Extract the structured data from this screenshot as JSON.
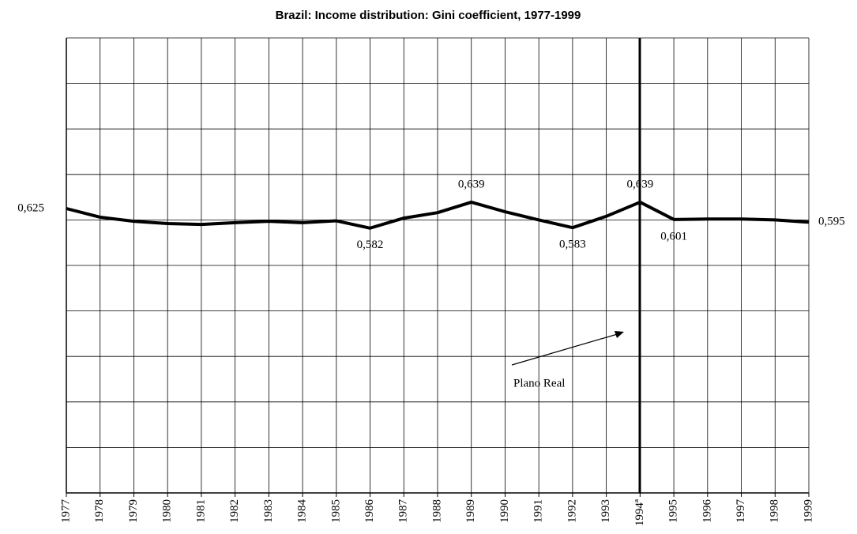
{
  "chart_data": {
    "type": "line",
    "title": "Brazil: Income distribution: Gini coefficient, 1977-1999",
    "categories": [
      "1977",
      "1978",
      "1979",
      "1980",
      "1981",
      "1982",
      "1983",
      "1984",
      "1985",
      "1986",
      "1987",
      "1988",
      "1989",
      "1990",
      "1991",
      "1992",
      "1993",
      "1994ª",
      "1995",
      "1996",
      "1997",
      "1998",
      "1999"
    ],
    "series": [
      {
        "name": "Gini coefficient",
        "color": "#000000",
        "values": [
          0.625,
          0.606,
          0.597,
          0.592,
          0.59,
          0.594,
          0.597,
          0.594,
          0.598,
          0.582,
          0.604,
          0.616,
          0.639,
          0.618,
          0.6,
          0.583,
          0.608,
          0.639,
          0.601,
          0.602,
          0.602,
          0.6,
          0.595
        ],
        "value_labels": [
          "0,625",
          null,
          null,
          null,
          null,
          null,
          null,
          null,
          null,
          "0,582",
          null,
          null,
          "0,639",
          null,
          null,
          "0,583",
          null,
          "0,639",
          "0,601",
          null,
          null,
          null,
          "0,595"
        ]
      }
    ],
    "ylim": [
      0,
      1
    ],
    "annotation": "Plano Real"
  }
}
